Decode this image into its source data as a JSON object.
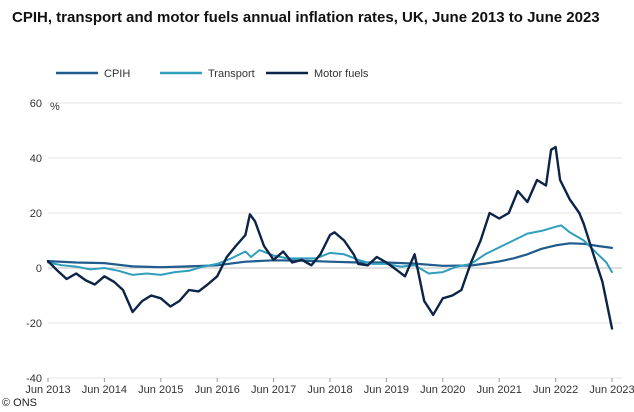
{
  "chart_data": {
    "type": "line",
    "title": "CPIH, transport and motor fuels annual inflation rates, UK, June 2013 to June 2023",
    "ylabel": "%",
    "xlabel": "",
    "ylim": [
      -40,
      60
    ],
    "yticks": [
      "60",
      "40",
      "20",
      "0",
      "-20",
      "-40"
    ],
    "xticks": [
      "Jun 2013",
      "Jun 2014",
      "Jun 2015",
      "Jun 2016",
      "Jun 2017",
      "Jun 2018",
      "Jun 2019",
      "Jun 2020",
      "Jun 2021",
      "Jun 2022",
      "Jun 2023"
    ],
    "legend_position": "top-left",
    "credit": "© ONS",
    "x": [
      2013.5,
      2014.0,
      2014.5,
      2015.0,
      2015.5,
      2016.0,
      2016.5,
      2017.0,
      2017.5,
      2018.0,
      2018.5,
      2019.0,
      2019.5,
      2020.0,
      2020.5,
      2021.0,
      2021.5,
      2022.0,
      2022.5,
      2023.0,
      2023.5
    ],
    "series": [
      {
        "name": "CPIH",
        "color": "#1f5b8c",
        "width": 2.2,
        "values": [
          [
            2013.5,
            2.5
          ],
          [
            2014.0,
            2.0
          ],
          [
            2014.5,
            1.8
          ],
          [
            2015.0,
            0.6
          ],
          [
            2015.5,
            0.3
          ],
          [
            2016.0,
            0.6
          ],
          [
            2016.5,
            1.0
          ],
          [
            2017.0,
            2.3
          ],
          [
            2017.5,
            2.8
          ],
          [
            2018.0,
            2.7
          ],
          [
            2018.5,
            2.3
          ],
          [
            2019.0,
            2.0
          ],
          [
            2019.5,
            2.0
          ],
          [
            2020.0,
            1.6
          ],
          [
            2020.5,
            0.8
          ],
          [
            2021.0,
            0.9
          ],
          [
            2021.25,
            1.6
          ],
          [
            2021.5,
            2.4
          ],
          [
            2021.75,
            3.5
          ],
          [
            2022.0,
            5.0
          ],
          [
            2022.25,
            7.0
          ],
          [
            2022.5,
            8.2
          ],
          [
            2022.75,
            9.0
          ],
          [
            2023.0,
            8.8
          ],
          [
            2023.25,
            8.0
          ],
          [
            2023.5,
            7.3
          ]
        ]
      },
      {
        "name": "Transport",
        "color": "#2f9fbd",
        "width": 2.0,
        "values": [
          [
            2013.5,
            2.0
          ],
          [
            2013.75,
            1.0
          ],
          [
            2014.0,
            0.5
          ],
          [
            2014.25,
            -0.5
          ],
          [
            2014.5,
            0.0
          ],
          [
            2014.75,
            -1.0
          ],
          [
            2015.0,
            -2.5
          ],
          [
            2015.25,
            -2.0
          ],
          [
            2015.5,
            -2.5
          ],
          [
            2015.75,
            -1.5
          ],
          [
            2016.0,
            -1.0
          ],
          [
            2016.25,
            0.5
          ],
          [
            2016.5,
            1.5
          ],
          [
            2016.75,
            3.5
          ],
          [
            2017.0,
            6.0
          ],
          [
            2017.1,
            4.0
          ],
          [
            2017.25,
            6.5
          ],
          [
            2017.5,
            4.5
          ],
          [
            2017.75,
            3.5
          ],
          [
            2018.0,
            3.5
          ],
          [
            2018.25,
            3.5
          ],
          [
            2018.5,
            5.5
          ],
          [
            2018.75,
            5.0
          ],
          [
            2019.0,
            3.0
          ],
          [
            2019.25,
            1.5
          ],
          [
            2019.5,
            1.5
          ],
          [
            2019.75,
            0.5
          ],
          [
            2020.0,
            1.0
          ],
          [
            2020.25,
            -2.0
          ],
          [
            2020.5,
            -1.5
          ],
          [
            2020.75,
            0.5
          ],
          [
            2021.0,
            1.5
          ],
          [
            2021.25,
            5.0
          ],
          [
            2021.5,
            7.5
          ],
          [
            2021.75,
            10.0
          ],
          [
            2022.0,
            12.5
          ],
          [
            2022.25,
            13.5
          ],
          [
            2022.5,
            15.0
          ],
          [
            2022.6,
            15.5
          ],
          [
            2022.75,
            13.0
          ],
          [
            2023.0,
            10.0
          ],
          [
            2023.25,
            5.0
          ],
          [
            2023.4,
            2.0
          ],
          [
            2023.5,
            -1.5
          ]
        ]
      },
      {
        "name": "Motor fuels",
        "color": "#0b2447",
        "width": 2.4,
        "values": [
          [
            2013.5,
            2.5
          ],
          [
            2013.67,
            -1.0
          ],
          [
            2013.83,
            -4.0
          ],
          [
            2014.0,
            -2.0
          ],
          [
            2014.17,
            -4.5
          ],
          [
            2014.33,
            -6.0
          ],
          [
            2014.5,
            -3.0
          ],
          [
            2014.67,
            -5.0
          ],
          [
            2014.83,
            -8.0
          ],
          [
            2015.0,
            -16.0
          ],
          [
            2015.17,
            -12.0
          ],
          [
            2015.33,
            -10.0
          ],
          [
            2015.5,
            -11.0
          ],
          [
            2015.67,
            -14.0
          ],
          [
            2015.83,
            -12.0
          ],
          [
            2016.0,
            -8.0
          ],
          [
            2016.17,
            -8.5
          ],
          [
            2016.33,
            -6.0
          ],
          [
            2016.5,
            -3.0
          ],
          [
            2016.67,
            4.0
          ],
          [
            2016.83,
            8.0
          ],
          [
            2017.0,
            12.0
          ],
          [
            2017.08,
            19.5
          ],
          [
            2017.17,
            17.0
          ],
          [
            2017.33,
            8.0
          ],
          [
            2017.5,
            3.0
          ],
          [
            2017.67,
            6.0
          ],
          [
            2017.83,
            2.0
          ],
          [
            2018.0,
            3.0
          ],
          [
            2018.17,
            1.0
          ],
          [
            2018.33,
            5.0
          ],
          [
            2018.5,
            12.0
          ],
          [
            2018.58,
            13.0
          ],
          [
            2018.75,
            10.0
          ],
          [
            2018.92,
            5.0
          ],
          [
            2019.0,
            1.5
          ],
          [
            2019.17,
            1.0
          ],
          [
            2019.33,
            4.0
          ],
          [
            2019.5,
            2.0
          ],
          [
            2019.67,
            -0.5
          ],
          [
            2019.83,
            -3.0
          ],
          [
            2020.0,
            5.0
          ],
          [
            2020.17,
            -12.0
          ],
          [
            2020.33,
            -17.0
          ],
          [
            2020.5,
            -11.0
          ],
          [
            2020.67,
            -10.0
          ],
          [
            2020.83,
            -8.0
          ],
          [
            2021.0,
            2.0
          ],
          [
            2021.17,
            10.0
          ],
          [
            2021.33,
            20.0
          ],
          [
            2021.5,
            18.0
          ],
          [
            2021.67,
            20.0
          ],
          [
            2021.83,
            28.0
          ],
          [
            2022.0,
            24.0
          ],
          [
            2022.17,
            32.0
          ],
          [
            2022.33,
            30.0
          ],
          [
            2022.42,
            43.0
          ],
          [
            2022.5,
            44.0
          ],
          [
            2022.58,
            32.0
          ],
          [
            2022.75,
            25.0
          ],
          [
            2022.92,
            20.0
          ],
          [
            2023.0,
            16.0
          ],
          [
            2023.17,
            5.0
          ],
          [
            2023.33,
            -5.0
          ],
          [
            2023.5,
            -22.0
          ]
        ]
      }
    ]
  }
}
